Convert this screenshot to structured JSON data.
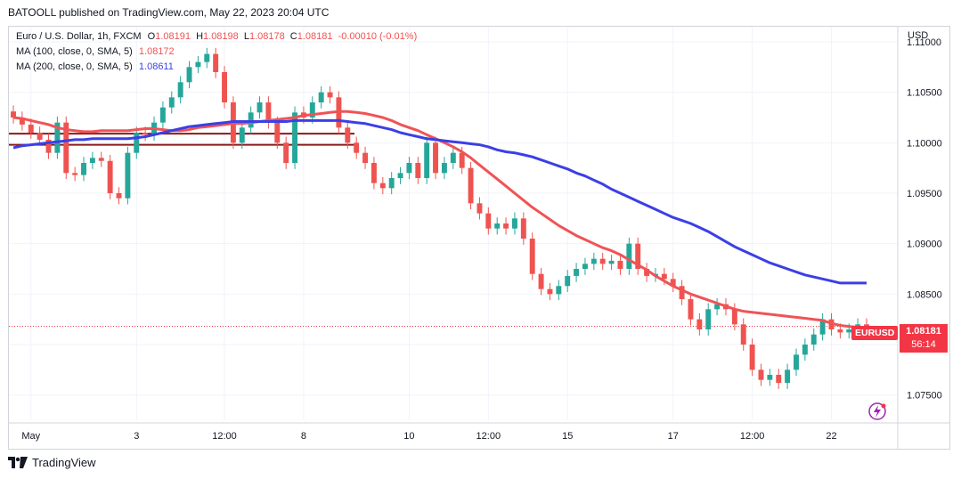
{
  "header": "BATOOLL published on TradingView.com, May 22, 2023 20:04 UTC",
  "legend": {
    "symbol_line": "Euro / U.S. Dollar, 1h, FXCM",
    "ohlc": {
      "o_label": "O",
      "o": "1.08191",
      "h_label": "H",
      "h": "1.08198",
      "l_label": "L",
      "l": "1.08178",
      "c_label": "C",
      "c": "1.08181",
      "chg": "-0.00010 (-0.01%)"
    },
    "ma100_label": "MA (100, close, 0, SMA, 5)",
    "ma100_value": "1.08172",
    "ma200_label": "MA (200, close, 0, SMA, 5)",
    "ma200_value": "1.08611"
  },
  "currency": "USD",
  "price_tag": {
    "symbol": "EURUSD",
    "price": "1.08181",
    "countdown": "56:14"
  },
  "footer_brand": "TradingView",
  "colors": {
    "up": "#26a69a",
    "down": "#ef5350",
    "ma100": "#f05356",
    "ma200": "#3c3fe6",
    "support": "#8b1a1a",
    "tag": "#f23645"
  },
  "chart_data": {
    "type": "line",
    "title": "Euro / U.S. Dollar, 1h, FXCM",
    "ylim": [
      1.0725,
      1.1115
    ],
    "y_ticks": [
      "1.07500",
      "1.08000",
      "1.08500",
      "1.09000",
      "1.09500",
      "1.10000",
      "1.10500",
      "1.11000"
    ],
    "x_ticks": [
      "May",
      "3",
      "12:00",
      "8",
      "10",
      "12:00",
      "15",
      "17",
      "12:00",
      "22"
    ],
    "x_tick_index": [
      2,
      14,
      24,
      33,
      45,
      54,
      63,
      75,
      84,
      93
    ],
    "n_bars": 98,
    "grid": true,
    "legend_position": "top-left",
    "support_levels": [
      1.1009,
      1.0998
    ],
    "last_price": 1.08181,
    "series": [
      {
        "name": "EURUSD",
        "kind": "close",
        "values": [
          1.1025,
          1.1018,
          1.101,
          1.1003,
          1.099,
          1.102,
          1.097,
          1.0968,
          1.098,
          1.0985,
          1.0982,
          1.095,
          1.0945,
          1.099,
          1.101,
          1.1008,
          1.102,
          1.1035,
          1.1045,
          1.106,
          1.1075,
          1.108,
          1.1088,
          1.107,
          1.104,
          1.1,
          1.1015,
          1.103,
          1.104,
          1.102,
          1.1,
          1.098,
          1.103,
          1.1025,
          1.104,
          1.105,
          1.1045,
          1.1015,
          1.1,
          1.099,
          1.098,
          1.096,
          1.0955,
          1.0965,
          1.097,
          1.098,
          1.0965,
          1.1,
          1.097,
          1.098,
          1.099,
          1.0975,
          1.094,
          1.093,
          1.0915,
          1.092,
          1.0915,
          1.0925,
          1.0905,
          1.087,
          1.0855,
          1.085,
          1.0858,
          1.0868,
          1.0875,
          1.088,
          1.0885,
          1.088,
          1.0883,
          1.0875,
          1.09,
          1.0875,
          1.0868,
          1.087,
          1.0865,
          1.0858,
          1.0845,
          1.0825,
          1.0815,
          1.0835,
          1.084,
          1.0835,
          1.082,
          1.08,
          1.0775,
          1.0765,
          1.077,
          1.0762,
          1.0775,
          1.079,
          1.08,
          1.081,
          1.0825,
          1.0815,
          1.0812,
          1.0815,
          1.082,
          1.0818
        ]
      },
      {
        "name": "MA (100, close, 0, SMA, 5)",
        "kind": "ma",
        "values": [
          1.1025,
          1.1024,
          1.1022,
          1.102,
          1.1018,
          1.1015,
          1.1013,
          1.1012,
          1.1011,
          1.1011,
          1.1012,
          1.1012,
          1.1012,
          1.1012,
          1.1013,
          1.1014,
          1.1014,
          1.1013,
          1.1012,
          1.1012,
          1.1013,
          1.1015,
          1.1016,
          1.1017,
          1.1018,
          1.1019,
          1.1019,
          1.102,
          1.1021,
          1.1022,
          1.1023,
          1.1024,
          1.1025,
          1.1027,
          1.1028,
          1.1029,
          1.103,
          1.1031,
          1.1031,
          1.103,
          1.1029,
          1.1027,
          1.1025,
          1.1022,
          1.1018,
          1.1015,
          1.1012,
          1.1008,
          1.1004,
          1.1,
          1.0996,
          1.0991,
          1.0985,
          1.0978,
          1.0971,
          1.0964,
          1.0957,
          1.095,
          1.0943,
          1.0936,
          1.093,
          1.0924,
          1.0918,
          1.0913,
          1.0908,
          1.0904,
          1.09,
          1.0896,
          1.0893,
          1.0889,
          1.0884,
          1.0879,
          1.0874,
          1.0868,
          1.0863,
          1.0858,
          1.0854,
          1.085,
          1.0847,
          1.0844,
          1.0841,
          1.0838,
          1.0835,
          1.0833,
          1.0832,
          1.0831,
          1.083,
          1.0829,
          1.0828,
          1.0827,
          1.0826,
          1.0825,
          1.0824,
          1.0821,
          1.0819,
          1.0818,
          1.0817,
          1.0817
        ]
      },
      {
        "name": "MA (200, close, 0, SMA, 5)",
        "kind": "ma",
        "values": [
          1.0995,
          1.0997,
          1.0998,
          1.0999,
          1.1,
          1.1001,
          1.1002,
          1.1003,
          1.1003,
          1.1004,
          1.1004,
          1.1004,
          1.1004,
          1.1004,
          1.1005,
          1.1006,
          1.1008,
          1.101,
          1.1012,
          1.1014,
          1.1016,
          1.1017,
          1.1018,
          1.1019,
          1.102,
          1.1021,
          1.1021,
          1.1021,
          1.1021,
          1.1021,
          1.1021,
          1.1021,
          1.1022,
          1.1022,
          1.1022,
          1.1022,
          1.1022,
          1.1022,
          1.1021,
          1.102,
          1.1019,
          1.1017,
          1.1015,
          1.1013,
          1.101,
          1.1008,
          1.1006,
          1.1004,
          1.1003,
          1.1002,
          1.1001,
          1.1,
          1.0999,
          1.0998,
          1.0996,
          1.0993,
          1.0991,
          1.099,
          1.0988,
          1.0986,
          1.0983,
          1.098,
          1.0977,
          1.0974,
          1.097,
          1.0967,
          1.0963,
          1.0959,
          1.0954,
          1.095,
          1.0946,
          1.0942,
          1.0938,
          1.0934,
          1.093,
          1.0926,
          1.0923,
          1.092,
          1.0916,
          1.0912,
          1.0907,
          1.0902,
          1.0897,
          1.0893,
          1.0889,
          1.0885,
          1.0881,
          1.0878,
          1.0875,
          1.0872,
          1.0869,
          1.0867,
          1.0865,
          1.0863,
          1.0861,
          1.0861,
          1.0861,
          1.0861
        ]
      }
    ]
  }
}
